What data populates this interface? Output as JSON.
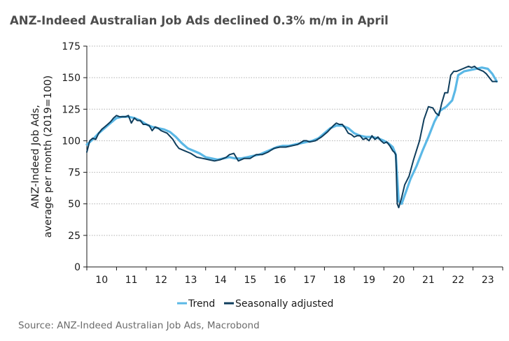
{
  "title": "ANZ-Indeed Australian Job Ads declined 0.3% m/m in April",
  "source": "Source: ANZ-Indeed Australian Job Ads, Macrobond",
  "colors": {
    "trend": "#5bb8e6",
    "seasonally_adjusted": "#0f3d5c",
    "grid": "#b0b0b0",
    "axis": "#1a1a1a"
  },
  "chart_data": {
    "type": "line",
    "title": "ANZ-Indeed Australian Job Ads declined 0.3% m/m in April",
    "ylabel": [
      "ANZ-Indeed Job Ads,",
      "average per month (2019=100)"
    ],
    "xlabel": "",
    "ylim": [
      0,
      175
    ],
    "yticks": [
      0,
      25,
      50,
      75,
      100,
      125,
      150,
      175
    ],
    "xlim": [
      2009.5,
      2023.5
    ],
    "xticks": [
      {
        "value": 2010,
        "label": "10"
      },
      {
        "value": 2011,
        "label": "11"
      },
      {
        "value": 2012,
        "label": "12"
      },
      {
        "value": 2013,
        "label": "13"
      },
      {
        "value": 2014,
        "label": "14"
      },
      {
        "value": 2015,
        "label": "15"
      },
      {
        "value": 2016,
        "label": "16"
      },
      {
        "value": 2017,
        "label": "17"
      },
      {
        "value": 2018,
        "label": "18"
      },
      {
        "value": 2019,
        "label": "19"
      },
      {
        "value": 2020,
        "label": "20"
      },
      {
        "value": 2021,
        "label": "21"
      },
      {
        "value": 2022,
        "label": "22"
      },
      {
        "value": 2023,
        "label": "23"
      }
    ],
    "grid": "horizontal-dotted",
    "legend": "bottom-center",
    "series": [
      {
        "name": "Trend",
        "x": [
          2009.5,
          2009.7,
          2009.9,
          2010.1,
          2010.3,
          2010.5,
          2010.7,
          2010.9,
          2011.1,
          2011.3,
          2011.5,
          2011.7,
          2011.9,
          2012.1,
          2012.3,
          2012.5,
          2012.7,
          2012.9,
          2013.1,
          2013.3,
          2013.5,
          2013.7,
          2013.9,
          2014.1,
          2014.3,
          2014.5,
          2014.7,
          2014.9,
          2015.1,
          2015.3,
          2015.5,
          2015.7,
          2015.9,
          2016.1,
          2016.3,
          2016.5,
          2016.7,
          2016.9,
          2017.1,
          2017.3,
          2017.5,
          2017.7,
          2017.9,
          2018.1,
          2018.3,
          2018.5,
          2018.7,
          2018.9,
          2019.1,
          2019.3,
          2019.5,
          2019.65,
          2019.8,
          2019.9,
          2020.0,
          2020.1,
          2020.25,
          2020.4,
          2020.6,
          2020.8,
          2021.0,
          2021.2,
          2021.4,
          2021.6,
          2021.8,
          2021.9,
          2022.0,
          2022.2,
          2022.4,
          2022.6,
          2022.8,
          2023.0,
          2023.15,
          2023.3
        ],
        "values": [
          97,
          101,
          106,
          110,
          114,
          118,
          119,
          119,
          118,
          116,
          113,
          111,
          110,
          109,
          107,
          103,
          98,
          94,
          92,
          90,
          87,
          86,
          85,
          86,
          87,
          86,
          86,
          87,
          88,
          89,
          91,
          93,
          95,
          96,
          96,
          97,
          98,
          99,
          100,
          102,
          106,
          110,
          112,
          112,
          110,
          106,
          104,
          103,
          103,
          102,
          100,
          98,
          95,
          89,
          52,
          50,
          60,
          70,
          80,
          92,
          103,
          115,
          124,
          127,
          132,
          140,
          152,
          155,
          156,
          157,
          158,
          157,
          153,
          147
        ]
      },
      {
        "name": "Seasonally adjusted",
        "x": [
          2009.5,
          2009.6,
          2009.7,
          2009.8,
          2009.9,
          2010.0,
          2010.1,
          2010.2,
          2010.3,
          2010.4,
          2010.5,
          2010.6,
          2010.7,
          2010.8,
          2010.9,
          2011.0,
          2011.1,
          2011.2,
          2011.3,
          2011.4,
          2011.5,
          2011.6,
          2011.7,
          2011.8,
          2011.9,
          2012.0,
          2012.2,
          2012.4,
          2012.5,
          2012.6,
          2012.8,
          2013.0,
          2013.2,
          2013.4,
          2013.6,
          2013.8,
          2014.0,
          2014.2,
          2014.3,
          2014.45,
          2014.6,
          2014.8,
          2015.0,
          2015.2,
          2015.4,
          2015.6,
          2015.8,
          2016.0,
          2016.2,
          2016.4,
          2016.6,
          2016.8,
          2016.9,
          2017.0,
          2017.2,
          2017.4,
          2017.6,
          2017.8,
          2017.9,
          2018.0,
          2018.1,
          2018.2,
          2018.3,
          2018.4,
          2018.5,
          2018.6,
          2018.7,
          2018.8,
          2018.9,
          2019.0,
          2019.1,
          2019.2,
          2019.3,
          2019.4,
          2019.5,
          2019.6,
          2019.7,
          2019.8,
          2019.85,
          2019.9,
          2019.95,
          2020.0,
          2020.1,
          2020.2,
          2020.35,
          2020.5,
          2020.7,
          2020.85,
          2021.0,
          2021.15,
          2021.25,
          2021.35,
          2021.45,
          2021.55,
          2021.65,
          2021.75,
          2021.85,
          2021.95,
          2022.05,
          2022.15,
          2022.25,
          2022.35,
          2022.45,
          2022.55,
          2022.65,
          2022.75,
          2022.85,
          2022.95,
          2023.05,
          2023.15,
          2023.25,
          2023.3
        ],
        "values": [
          91,
          100,
          102,
          101,
          106,
          109,
          111,
          113,
          115,
          118,
          120,
          119,
          119,
          119,
          120,
          114,
          118,
          116,
          116,
          113,
          113,
          112,
          108,
          111,
          110,
          108,
          106,
          101,
          97,
          94,
          92,
          90,
          87,
          86,
          85,
          84,
          85,
          87,
          89,
          90,
          84,
          86,
          86,
          89,
          89,
          91,
          94,
          95,
          95,
          96,
          97,
          100,
          100,
          99,
          100,
          103,
          107,
          112,
          114,
          113,
          113,
          110,
          106,
          105,
          103,
          104,
          104,
          101,
          102,
          100,
          104,
          101,
          103,
          100,
          98,
          99,
          96,
          92,
          91,
          89,
          50,
          47,
          55,
          65,
          72,
          85,
          100,
          117,
          127,
          126,
          122,
          120,
          130,
          138,
          138,
          152,
          155,
          155,
          156,
          157,
          158,
          159,
          158,
          159,
          157,
          156,
          155,
          153,
          150,
          147,
          147,
          147
        ]
      }
    ]
  }
}
